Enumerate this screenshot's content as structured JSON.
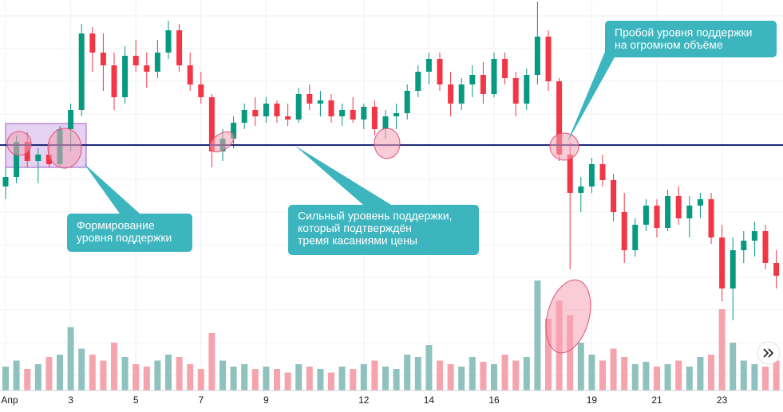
{
  "chart_data": {
    "type": "candlestick",
    "categories": [
      "Апр",
      null,
      null,
      null,
      null,
      null,
      "3",
      null,
      null,
      null,
      null,
      null,
      "5",
      null,
      null,
      null,
      null,
      null,
      "7",
      null,
      null,
      null,
      null,
      null,
      "9",
      null,
      null,
      null,
      null,
      null,
      null,
      null,
      null,
      "12",
      null,
      null,
      null,
      null,
      null,
      "14",
      null,
      null,
      null,
      null,
      null,
      "16",
      null,
      null,
      null,
      null,
      null,
      null,
      null,
      null,
      "19",
      null,
      null,
      null,
      null,
      null,
      "21",
      null,
      null,
      null,
      null,
      null,
      "23",
      null,
      null,
      null,
      null,
      null
    ],
    "open": [
      44,
      47,
      58,
      52,
      54,
      51,
      62,
      68,
      92,
      86,
      82,
      72,
      85,
      82,
      80,
      86,
      93,
      82,
      76,
      72,
      55,
      59,
      64,
      68,
      66,
      70,
      66,
      65,
      73,
      70,
      71,
      66,
      68,
      65,
      69,
      62,
      66,
      67,
      74,
      80,
      84,
      76,
      70,
      76,
      79,
      73,
      84,
      78,
      70,
      79,
      91,
      77,
      54,
      42,
      44,
      51,
      46,
      36,
      24,
      32,
      38,
      31,
      41,
      34,
      38,
      40,
      28,
      12,
      24,
      27,
      30,
      20
    ],
    "high": [
      50,
      60,
      61,
      56,
      58,
      63,
      70,
      95,
      94,
      92,
      86,
      88,
      90,
      86,
      90,
      96,
      95,
      86,
      80,
      73,
      62,
      66,
      70,
      72,
      72,
      71,
      70,
      75,
      76,
      74,
      73,
      70,
      72,
      70,
      71,
      68,
      70,
      76,
      82,
      86,
      86,
      80,
      78,
      82,
      83,
      86,
      86,
      80,
      81,
      102,
      93,
      78,
      58,
      47,
      53,
      54,
      48,
      42,
      34,
      40,
      40,
      43,
      44,
      41,
      42,
      42,
      32,
      28,
      30,
      33,
      32,
      24
    ],
    "low": [
      40,
      45,
      50,
      45,
      50,
      50,
      55,
      66,
      80,
      74,
      68,
      70,
      80,
      75,
      78,
      84,
      80,
      74,
      70,
      50,
      52,
      56,
      62,
      63,
      64,
      64,
      63,
      64,
      68,
      66,
      64,
      63,
      64,
      62,
      60,
      59,
      62,
      65,
      72,
      76,
      74,
      66,
      68,
      72,
      70,
      72,
      76,
      66,
      68,
      76,
      74,
      52,
      18,
      36,
      42,
      44,
      33,
      20,
      22,
      30,
      28,
      30,
      32,
      28,
      34,
      26,
      8,
      2,
      20,
      22,
      18,
      12
    ],
    "close": [
      47,
      58,
      52,
      54,
      51,
      62,
      68,
      92,
      86,
      82,
      72,
      85,
      82,
      80,
      86,
      93,
      82,
      76,
      72,
      55,
      59,
      64,
      68,
      66,
      70,
      66,
      65,
      73,
      70,
      71,
      66,
      68,
      65,
      69,
      62,
      66,
      67,
      74,
      80,
      84,
      76,
      70,
      76,
      79,
      73,
      84,
      78,
      70,
      79,
      91,
      77,
      54,
      42,
      44,
      51,
      46,
      36,
      24,
      32,
      38,
      31,
      41,
      34,
      38,
      40,
      28,
      12,
      24,
      27,
      30,
      20,
      16
    ],
    "volume": [
      20,
      25,
      18,
      22,
      28,
      30,
      53,
      35,
      30,
      25,
      40,
      28,
      22,
      20,
      25,
      30,
      28,
      22,
      18,
      48,
      25,
      20,
      22,
      18,
      20,
      18,
      15,
      22,
      20,
      18,
      15,
      20,
      18,
      22,
      25,
      20,
      18,
      30,
      28,
      38,
      25,
      22,
      20,
      28,
      24,
      22,
      30,
      25,
      28,
      92,
      60,
      75,
      63,
      40,
      30,
      25,
      35,
      28,
      22,
      24,
      20,
      22,
      25,
      20,
      28,
      30,
      68,
      40,
      25,
      22,
      20,
      25
    ],
    "ylim": [
      0,
      100
    ],
    "volume_ylim": [
      0,
      100
    ],
    "up_color": "#089981",
    "down_color": "#f23645",
    "up_volume_color": "#8fc2bd",
    "down_volume_color": "#f5a3ad",
    "support_level": 57,
    "support_color": "#1e2a78",
    "grid": true,
    "annotations": [
      {
        "lines": [
          "Формирование",
          "уровня поддержки"
        ]
      },
      {
        "lines": [
          "Сильный уровень поддержки,",
          "который подтверждён",
          "тремя касаниями цены"
        ]
      },
      {
        "lines": [
          "Пробой уровня поддержки",
          "на огромном объёме"
        ]
      }
    ]
  }
}
